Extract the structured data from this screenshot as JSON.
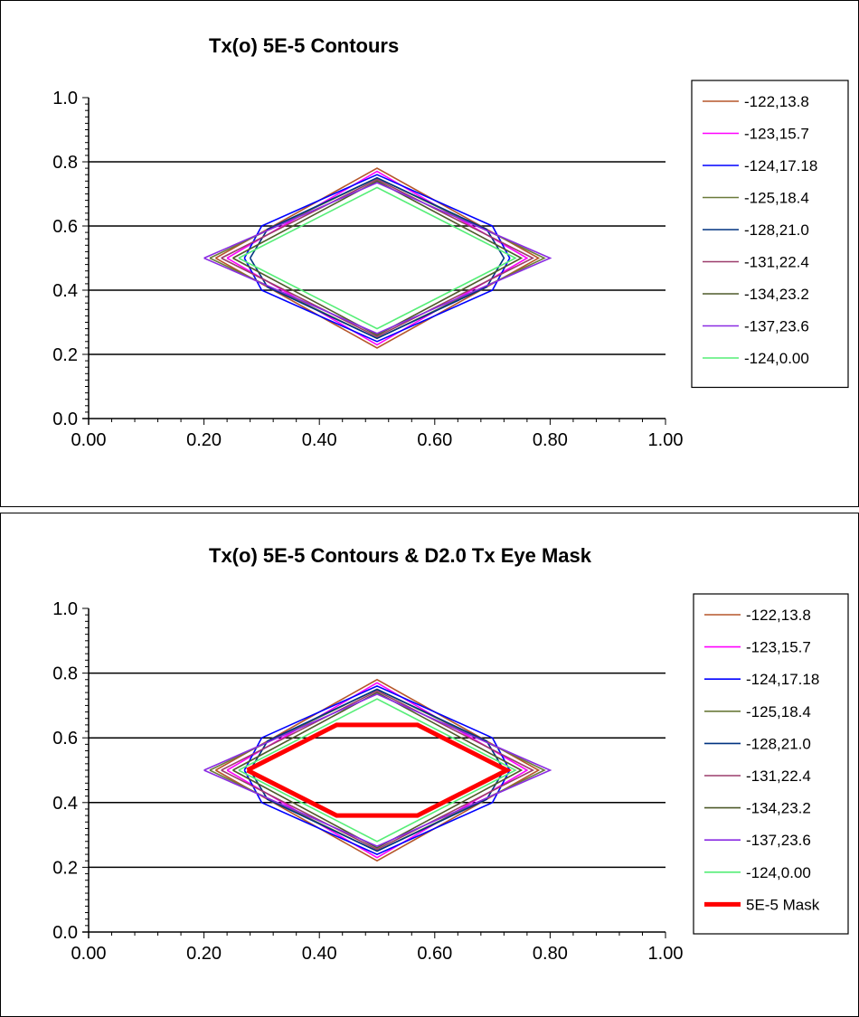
{
  "chart_data": [
    {
      "type": "line",
      "title": "Tx(o) 5E-5  Contours",
      "xlim": [
        0,
        1
      ],
      "ylim": [
        0,
        1
      ],
      "xticks": [
        "0.00",
        "0.20",
        "0.40",
        "0.60",
        "0.80",
        "1.00"
      ],
      "yticks": [
        "0.0",
        "0.2",
        "0.4",
        "0.6",
        "0.8",
        "1.0"
      ],
      "grid": "horizontal",
      "legend_position": "right",
      "series": [
        {
          "name": "-122,13.8",
          "color": "#b5562a",
          "x": [
            0.22,
            0.5,
            0.78,
            0.5,
            0.22
          ],
          "y": [
            0.5,
            0.78,
            0.5,
            0.22,
            0.5
          ]
        },
        {
          "name": "-123,15.7",
          "color": "#ff00ff",
          "x": [
            0.24,
            0.5,
            0.76,
            0.5,
            0.24
          ],
          "y": [
            0.5,
            0.77,
            0.5,
            0.23,
            0.5
          ]
        },
        {
          "name": "-124,17.18",
          "color": "#0000ff",
          "x": [
            0.27,
            0.3,
            0.5,
            0.7,
            0.73,
            0.7,
            0.5,
            0.3,
            0.27
          ],
          "y": [
            0.5,
            0.6,
            0.76,
            0.6,
            0.5,
            0.4,
            0.24,
            0.4,
            0.5
          ]
        },
        {
          "name": "-125,18.4",
          "color": "#6b7a3a",
          "x": [
            0.21,
            0.5,
            0.79,
            0.5,
            0.21
          ],
          "y": [
            0.5,
            0.75,
            0.5,
            0.25,
            0.5
          ]
        },
        {
          "name": "-128,21.0",
          "color": "#003380",
          "x": [
            0.28,
            0.31,
            0.5,
            0.69,
            0.72,
            0.69,
            0.5,
            0.31,
            0.28
          ],
          "y": [
            0.5,
            0.59,
            0.75,
            0.59,
            0.5,
            0.41,
            0.25,
            0.41,
            0.5
          ]
        },
        {
          "name": "-131,22.4",
          "color": "#9b3d6b",
          "x": [
            0.23,
            0.5,
            0.77,
            0.5,
            0.23
          ],
          "y": [
            0.5,
            0.745,
            0.5,
            0.255,
            0.5
          ]
        },
        {
          "name": "-134,23.2",
          "color": "#4f5a2a",
          "x": [
            0.25,
            0.5,
            0.75,
            0.5,
            0.25
          ],
          "y": [
            0.5,
            0.74,
            0.5,
            0.26,
            0.5
          ]
        },
        {
          "name": "-137,23.6",
          "color": "#8a2be2",
          "x": [
            0.2,
            0.5,
            0.8,
            0.5,
            0.2
          ],
          "y": [
            0.5,
            0.735,
            0.5,
            0.265,
            0.5
          ]
        },
        {
          "name": "-124,0.00",
          "color": "#55ee77",
          "x": [
            0.26,
            0.5,
            0.74,
            0.5,
            0.26
          ],
          "y": [
            0.5,
            0.72,
            0.5,
            0.28,
            0.5
          ]
        }
      ]
    },
    {
      "type": "line",
      "title": "Tx(o) 5E-5  Contours & D2.0 Tx Eye Mask",
      "xlim": [
        0,
        1
      ],
      "ylim": [
        0,
        1
      ],
      "xticks": [
        "0.00",
        "0.20",
        "0.40",
        "0.60",
        "0.80",
        "1.00"
      ],
      "yticks": [
        "0.0",
        "0.2",
        "0.4",
        "0.6",
        "0.8",
        "1.0"
      ],
      "grid": "horizontal",
      "legend_position": "right",
      "series": [
        {
          "name": "-122,13.8",
          "color": "#b5562a",
          "x": [
            0.22,
            0.5,
            0.78,
            0.5,
            0.22
          ],
          "y": [
            0.5,
            0.78,
            0.5,
            0.22,
            0.5
          ]
        },
        {
          "name": "-123,15.7",
          "color": "#ff00ff",
          "x": [
            0.24,
            0.5,
            0.76,
            0.5,
            0.24
          ],
          "y": [
            0.5,
            0.77,
            0.5,
            0.23,
            0.5
          ]
        },
        {
          "name": "-124,17.18",
          "color": "#0000ff",
          "x": [
            0.27,
            0.3,
            0.5,
            0.7,
            0.73,
            0.7,
            0.5,
            0.3,
            0.27
          ],
          "y": [
            0.5,
            0.6,
            0.76,
            0.6,
            0.5,
            0.4,
            0.24,
            0.4,
            0.5
          ]
        },
        {
          "name": "-125,18.4",
          "color": "#6b7a3a",
          "x": [
            0.21,
            0.5,
            0.79,
            0.5,
            0.21
          ],
          "y": [
            0.5,
            0.75,
            0.5,
            0.25,
            0.5
          ]
        },
        {
          "name": "-128,21.0",
          "color": "#003380",
          "x": [
            0.28,
            0.31,
            0.5,
            0.69,
            0.72,
            0.69,
            0.5,
            0.31,
            0.28
          ],
          "y": [
            0.5,
            0.59,
            0.75,
            0.59,
            0.5,
            0.41,
            0.25,
            0.41,
            0.5
          ]
        },
        {
          "name": "-131,22.4",
          "color": "#9b3d6b",
          "x": [
            0.23,
            0.5,
            0.77,
            0.5,
            0.23
          ],
          "y": [
            0.5,
            0.745,
            0.5,
            0.255,
            0.5
          ]
        },
        {
          "name": "-134,23.2",
          "color": "#4f5a2a",
          "x": [
            0.25,
            0.5,
            0.75,
            0.5,
            0.25
          ],
          "y": [
            0.5,
            0.74,
            0.5,
            0.26,
            0.5
          ]
        },
        {
          "name": "-137,23.6",
          "color": "#8a2be2",
          "x": [
            0.2,
            0.5,
            0.8,
            0.5,
            0.2
          ],
          "y": [
            0.5,
            0.735,
            0.5,
            0.265,
            0.5
          ]
        },
        {
          "name": "-124,0.00",
          "color": "#55ee77",
          "x": [
            0.26,
            0.5,
            0.74,
            0.5,
            0.26
          ],
          "y": [
            0.5,
            0.72,
            0.5,
            0.28,
            0.5
          ]
        },
        {
          "name": "5E-5 Mask",
          "color": "#ff0000",
          "thick": true,
          "x": [
            0.275,
            0.43,
            0.57,
            0.725,
            0.57,
            0.43,
            0.275
          ],
          "y": [
            0.5,
            0.64,
            0.64,
            0.5,
            0.36,
            0.36,
            0.5
          ]
        }
      ]
    }
  ]
}
